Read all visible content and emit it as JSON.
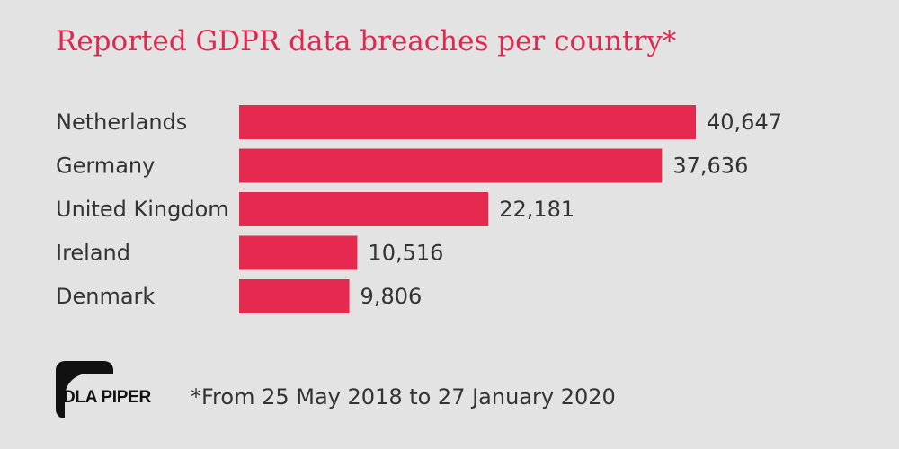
{
  "title": "Reported GDPR data breaches per country*",
  "footnote": "*From 25 May 2018 to 27 January 2020",
  "logo": {
    "text": "DLA PIPER"
  },
  "colors": {
    "bar": "#e5294f",
    "title": "#e0294f",
    "background": "#e3e3e3",
    "text": "#333333"
  },
  "chart_data": {
    "type": "bar",
    "orientation": "horizontal",
    "categories": [
      "Netherlands",
      "Germany",
      "United Kingdom",
      "Ireland",
      "Denmark"
    ],
    "values": [
      40647,
      37636,
      22181,
      10516,
      9806
    ],
    "value_labels": [
      "40,647",
      "37,636",
      "22,181",
      "10,516",
      "9,806"
    ],
    "title": "Reported GDPR data breaches per country*",
    "xlabel": "",
    "ylabel": "",
    "grid": false,
    "legend": "none"
  }
}
